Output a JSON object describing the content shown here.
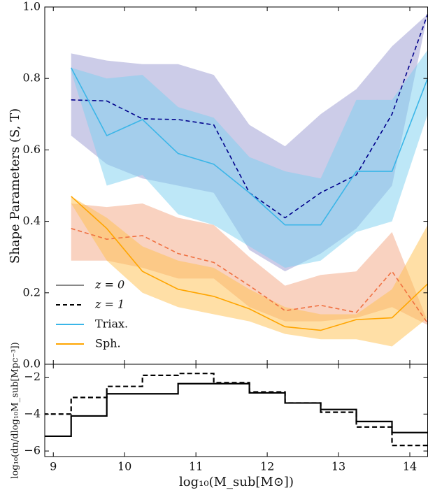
{
  "chart_data": [
    {
      "type": "line",
      "y_label": "Shape Parameters (S, T)",
      "x": [
        9.25,
        9.75,
        10.25,
        10.75,
        11.25,
        11.75,
        12.25,
        12.75,
        13.25,
        13.75,
        14.25
      ],
      "series": [
        {
          "color": "#9a9ad2",
          "line_color": "#00008b",
          "dash": true,
          "values": [
            0.74,
            0.737,
            0.687,
            0.685,
            0.67,
            0.48,
            0.41,
            0.48,
            0.53,
            0.7,
            0.98
          ],
          "upper": [
            0.87,
            0.85,
            0.84,
            0.84,
            0.81,
            0.67,
            0.61,
            0.7,
            0.77,
            0.89,
            0.98
          ],
          "lower": [
            0.64,
            0.56,
            0.52,
            0.5,
            0.48,
            0.32,
            0.26,
            0.31,
            0.38,
            0.5,
            0.98
          ]
        },
        {
          "color": "#7ccff0",
          "line_color": "#3bb6e8",
          "dash": false,
          "values": [
            0.83,
            0.64,
            0.685,
            0.59,
            0.56,
            0.48,
            0.39,
            0.39,
            0.54,
            0.54,
            0.8
          ],
          "upper": [
            0.83,
            0.8,
            0.81,
            0.72,
            0.69,
            0.58,
            0.54,
            0.52,
            0.74,
            0.74,
            0.88
          ],
          "lower": [
            0.82,
            0.5,
            0.53,
            0.42,
            0.39,
            0.33,
            0.27,
            0.29,
            0.37,
            0.4,
            0.7
          ]
        },
        {
          "color": "#f4a582",
          "line_color": "#f07040",
          "dash": true,
          "values": [
            0.38,
            0.35,
            0.36,
            0.31,
            0.285,
            0.22,
            0.15,
            0.165,
            0.145,
            0.26,
            0.115
          ],
          "upper": [
            0.45,
            0.44,
            0.45,
            0.41,
            0.39,
            0.3,
            0.22,
            0.25,
            0.26,
            0.37,
            0.12
          ],
          "lower": [
            0.29,
            0.29,
            0.27,
            0.24,
            0.24,
            0.16,
            0.12,
            0.12,
            0.13,
            0.16,
            0.11
          ]
        },
        {
          "color": "#ffc04d",
          "line_color": "#ffa500",
          "dash": false,
          "values": [
            0.47,
            0.38,
            0.26,
            0.21,
            0.19,
            0.155,
            0.105,
            0.095,
            0.125,
            0.13,
            0.225
          ],
          "upper": [
            0.47,
            0.41,
            0.33,
            0.29,
            0.27,
            0.21,
            0.16,
            0.14,
            0.14,
            0.21,
            0.39
          ],
          "lower": [
            0.45,
            0.29,
            0.2,
            0.16,
            0.14,
            0.12,
            0.085,
            0.07,
            0.07,
            0.05,
            0.13
          ]
        }
      ],
      "legend": [
        {
          "label": "z = 0",
          "color": "#888888",
          "dash": false
        },
        {
          "label": "z = 1",
          "color": "#000000",
          "dash": true
        },
        {
          "label": "Triax.",
          "color": "#3bb6e8",
          "dash": false
        },
        {
          "label": "Sph.",
          "color": "#ffa500",
          "dash": false
        }
      ],
      "legend_position": "lower left",
      "xlim": [
        8.88,
        14.25
      ],
      "xticks": [
        9,
        10,
        11,
        12,
        13,
        14
      ],
      "ylim": [
        0,
        1
      ],
      "yticks": [
        {
          "value": 0,
          "label": "0.0"
        },
        0.2,
        0.4,
        0.6,
        0.8,
        {
          "value": 1,
          "label": "1.0"
        }
      ]
    },
    {
      "type": "histogram",
      "x_label": "log₁₀(M_sub[M⊙])",
      "y_label": "log₁₀(dn/dlog₁₀M_sub[Mpc⁻³])",
      "bins": [
        8.75,
        9.25,
        9.75,
        10.25,
        10.75,
        11.25,
        11.75,
        12.25,
        12.75,
        13.25,
        13.75,
        14.25
      ],
      "series": [
        {
          "color": "#000000",
          "dash": false,
          "values": [
            -5.2,
            -4.1,
            -2.9,
            -2.9,
            -2.35,
            -2.35,
            -2.85,
            -3.4,
            -3.75,
            -4.4,
            -5.0
          ]
        },
        {
          "color": "#000000",
          "dash": true,
          "values": [
            -4.0,
            -3.1,
            -2.5,
            -1.9,
            -1.8,
            -2.3,
            -2.8,
            -3.4,
            -3.9,
            -4.7,
            -5.7
          ]
        }
      ],
      "xlim": [
        8.88,
        14.25
      ],
      "xticks": [
        9,
        10,
        11,
        12,
        13,
        14
      ],
      "ylim": [
        -6.3,
        -1.3
      ],
      "yticks": [
        {
          "value": -6,
          "label": "−6"
        },
        {
          "value": -4,
          "label": "−4"
        },
        {
          "value": -2,
          "label": "−2"
        }
      ]
    }
  ]
}
